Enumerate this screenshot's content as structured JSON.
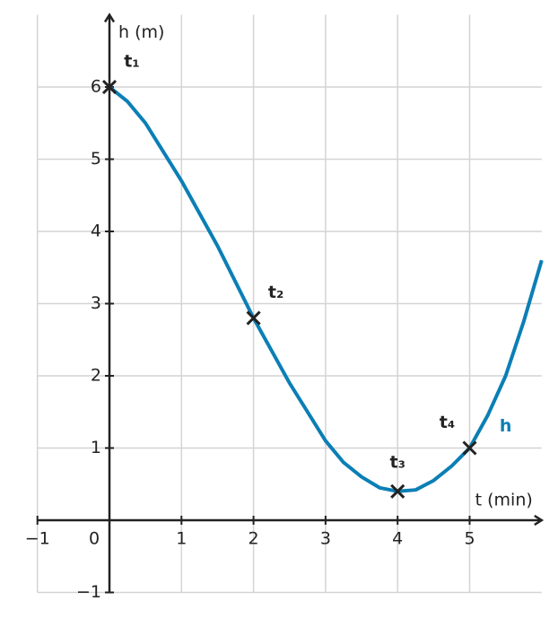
{
  "chart_data": {
    "type": "line",
    "x_label": "t (min)",
    "y_label": "h (m)",
    "xlim": [
      -1,
      6
    ],
    "ylim": [
      -1,
      7
    ],
    "xticks": [
      {
        "value": -1,
        "label": "−1"
      },
      0,
      1,
      2,
      3,
      4,
      5
    ],
    "yticks": [
      {
        "value": -1,
        "label": "−1"
      },
      1,
      2,
      3,
      4,
      5,
      6
    ],
    "grid": true,
    "series": [
      {
        "name": "h",
        "color": "#0b7fb5",
        "x": [
          0,
          0.25,
          0.5,
          0.75,
          1,
          1.25,
          1.5,
          1.75,
          2,
          2.25,
          2.5,
          2.75,
          3,
          3.25,
          3.5,
          3.75,
          4,
          4.25,
          4.5,
          4.75,
          5,
          5.25,
          5.5,
          5.75,
          6
        ],
        "values": [
          6,
          5.8,
          5.5,
          5.1,
          4.7,
          4.25,
          3.8,
          3.3,
          2.8,
          2.35,
          1.9,
          1.5,
          1.1,
          0.8,
          0.6,
          0.45,
          0.4,
          0.42,
          0.55,
          0.75,
          1.0,
          1.45,
          2.0,
          2.75,
          3.6
        ]
      }
    ],
    "points": [
      {
        "label": "t₁",
        "x": 0,
        "y": 6
      },
      {
        "label": "t₂",
        "x": 2,
        "y": 2.8
      },
      {
        "label": "t₃",
        "x": 4,
        "y": 0.4
      },
      {
        "label": "t₄",
        "x": 5,
        "y": 1
      }
    ]
  }
}
